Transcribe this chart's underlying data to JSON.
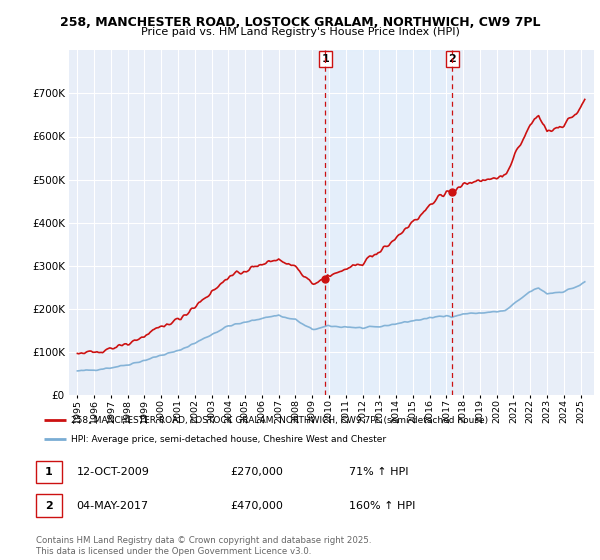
{
  "title1": "258, MANCHESTER ROAD, LOSTOCK GRALAM, NORTHWICH, CW9 7PL",
  "title2": "Price paid vs. HM Land Registry's House Price Index (HPI)",
  "legend_line1": "258, MANCHESTER ROAD, LOSTOCK GRALAM, NORTHWICH, CW9 7PL (semi-detached house)",
  "legend_line2": "HPI: Average price, semi-detached house, Cheshire West and Chester",
  "purchase1_year": 2009.79,
  "purchase1_price": 270000,
  "purchase2_year": 2017.35,
  "purchase2_price": 470000,
  "footer": "Contains HM Land Registry data © Crown copyright and database right 2025.\nThis data is licensed under the Open Government Licence v3.0.",
  "hpi_color": "#7aadd4",
  "price_color": "#cc1111",
  "shade_color": "#ddeeff",
  "vline_color": "#cc1111",
  "plot_bg": "#e8eef8",
  "ylim_max": 800000,
  "xlim_min": 1994.5,
  "xlim_max": 2025.8,
  "hpi_years": [
    1995.0,
    1995.08,
    1995.17,
    1995.25,
    1995.33,
    1995.42,
    1995.5,
    1995.58,
    1995.67,
    1995.75,
    1995.83,
    1995.92,
    1996.0,
    1996.08,
    1996.17,
    1996.25,
    1996.33,
    1996.42,
    1996.5,
    1996.58,
    1996.67,
    1996.75,
    1996.83,
    1996.92,
    1997.0,
    1997.08,
    1997.17,
    1997.25,
    1997.33,
    1997.42,
    1997.5,
    1997.58,
    1997.67,
    1997.75,
    1997.83,
    1997.92,
    1998.0,
    1998.08,
    1998.17,
    1998.25,
    1998.33,
    1998.42,
    1998.5,
    1998.58,
    1998.67,
    1998.75,
    1998.83,
    1998.92,
    1999.0,
    1999.08,
    1999.17,
    1999.25,
    1999.33,
    1999.42,
    1999.5,
    1999.58,
    1999.67,
    1999.75,
    1999.83,
    1999.92,
    2000.0,
    2000.08,
    2000.17,
    2000.25,
    2000.33,
    2000.42,
    2000.5,
    2000.58,
    2000.67,
    2000.75,
    2000.83,
    2000.92,
    2001.0,
    2001.08,
    2001.17,
    2001.25,
    2001.33,
    2001.42,
    2001.5,
    2001.58,
    2001.67,
    2001.75,
    2001.83,
    2001.92,
    2002.0,
    2002.08,
    2002.17,
    2002.25,
    2002.33,
    2002.42,
    2002.5,
    2002.58,
    2002.67,
    2002.75,
    2002.83,
    2002.92,
    2003.0,
    2003.08,
    2003.17,
    2003.25,
    2003.33,
    2003.42,
    2003.5,
    2003.58,
    2003.67,
    2003.75,
    2003.83,
    2003.92,
    2004.0,
    2004.08,
    2004.17,
    2004.25,
    2004.33,
    2004.42,
    2004.5,
    2004.58,
    2004.67,
    2004.75,
    2004.83,
    2004.92,
    2005.0,
    2005.08,
    2005.17,
    2005.25,
    2005.33,
    2005.42,
    2005.5,
    2005.58,
    2005.67,
    2005.75,
    2005.83,
    2005.92,
    2006.0,
    2006.08,
    2006.17,
    2006.25,
    2006.33,
    2006.42,
    2006.5,
    2006.58,
    2006.67,
    2006.75,
    2006.83,
    2006.92,
    2007.0,
    2007.08,
    2007.17,
    2007.25,
    2007.33,
    2007.42,
    2007.5,
    2007.58,
    2007.67,
    2007.75,
    2007.83,
    2007.92,
    2008.0,
    2008.08,
    2008.17,
    2008.25,
    2008.33,
    2008.42,
    2008.5,
    2008.58,
    2008.67,
    2008.75,
    2008.83,
    2008.92,
    2009.0,
    2009.08,
    2009.17,
    2009.25,
    2009.33,
    2009.42,
    2009.5,
    2009.58,
    2009.67,
    2009.75,
    2009.83,
    2009.92,
    2010.0,
    2010.08,
    2010.17,
    2010.25,
    2010.33,
    2010.42,
    2010.5,
    2010.58,
    2010.67,
    2010.75,
    2010.83,
    2010.92,
    2011.0,
    2011.08,
    2011.17,
    2011.25,
    2011.33,
    2011.42,
    2011.5,
    2011.58,
    2011.67,
    2011.75,
    2011.83,
    2011.92,
    2012.0,
    2012.08,
    2012.17,
    2012.25,
    2012.33,
    2012.42,
    2012.5,
    2012.58,
    2012.67,
    2012.75,
    2012.83,
    2012.92,
    2013.0,
    2013.08,
    2013.17,
    2013.25,
    2013.33,
    2013.42,
    2013.5,
    2013.58,
    2013.67,
    2013.75,
    2013.83,
    2013.92,
    2014.0,
    2014.08,
    2014.17,
    2014.25,
    2014.33,
    2014.42,
    2014.5,
    2014.58,
    2014.67,
    2014.75,
    2014.83,
    2014.92,
    2015.0,
    2015.08,
    2015.17,
    2015.25,
    2015.33,
    2015.42,
    2015.5,
    2015.58,
    2015.67,
    2015.75,
    2015.83,
    2015.92,
    2016.0,
    2016.08,
    2016.17,
    2016.25,
    2016.33,
    2016.42,
    2016.5,
    2016.58,
    2016.67,
    2016.75,
    2016.83,
    2016.92,
    2017.0,
    2017.08,
    2017.17,
    2017.25,
    2017.33,
    2017.42,
    2017.5,
    2017.58,
    2017.67,
    2017.75,
    2017.83,
    2017.92,
    2018.0,
    2018.08,
    2018.17,
    2018.25,
    2018.33,
    2018.42,
    2018.5,
    2018.58,
    2018.67,
    2018.75,
    2018.83,
    2018.92,
    2019.0,
    2019.08,
    2019.17,
    2019.25,
    2019.33,
    2019.42,
    2019.5,
    2019.58,
    2019.67,
    2019.75,
    2019.83,
    2019.92,
    2020.0,
    2020.08,
    2020.17,
    2020.25,
    2020.33,
    2020.42,
    2020.5,
    2020.58,
    2020.67,
    2020.75,
    2020.83,
    2020.92,
    2021.0,
    2021.08,
    2021.17,
    2021.25,
    2021.33,
    2021.42,
    2021.5,
    2021.58,
    2021.67,
    2021.75,
    2021.83,
    2021.92,
    2022.0,
    2022.08,
    2022.17,
    2022.25,
    2022.33,
    2022.42,
    2022.5,
    2022.58,
    2022.67,
    2022.75,
    2022.83,
    2022.92,
    2023.0,
    2023.08,
    2023.17,
    2023.25,
    2023.33,
    2023.42,
    2023.5,
    2023.58,
    2023.67,
    2023.75,
    2023.83,
    2023.92,
    2024.0,
    2024.08,
    2024.17,
    2024.25,
    2024.33,
    2024.42,
    2024.5,
    2024.58,
    2024.67,
    2024.75,
    2024.83,
    2024.92,
    2025.0,
    2025.08,
    2025.17,
    2025.25
  ]
}
